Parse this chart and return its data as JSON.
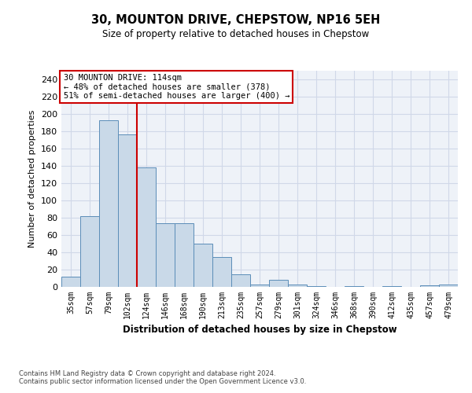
{
  "title1": "30, MOUNTON DRIVE, CHEPSTOW, NP16 5EH",
  "title2": "Size of property relative to detached houses in Chepstow",
  "xlabel": "Distribution of detached houses by size in Chepstow",
  "ylabel": "Number of detached properties",
  "categories": [
    "35sqm",
    "57sqm",
    "79sqm",
    "102sqm",
    "124sqm",
    "146sqm",
    "168sqm",
    "190sqm",
    "213sqm",
    "235sqm",
    "257sqm",
    "279sqm",
    "301sqm",
    "324sqm",
    "346sqm",
    "368sqm",
    "390sqm",
    "412sqm",
    "435sqm",
    "457sqm",
    "479sqm"
  ],
  "values": [
    12,
    82,
    193,
    176,
    138,
    74,
    74,
    50,
    35,
    15,
    3,
    8,
    3,
    1,
    0,
    1,
    0,
    1,
    0,
    2,
    3
  ],
  "bar_color": "#c9d9e8",
  "bar_edge_color": "#5b8db8",
  "vline_x_index": 3.5,
  "vline_color": "#cc0000",
  "annotation_line1": "30 MOUNTON DRIVE: 114sqm",
  "annotation_line2": "← 48% of detached houses are smaller (378)",
  "annotation_line3": "51% of semi-detached houses are larger (400) →",
  "annotation_box_color": "#cc0000",
  "ylim": [
    0,
    250
  ],
  "yticks": [
    0,
    20,
    40,
    60,
    80,
    100,
    120,
    140,
    160,
    180,
    200,
    220,
    240
  ],
  "grid_color": "#d0d8e8",
  "footer1": "Contains HM Land Registry data © Crown copyright and database right 2024.",
  "footer2": "Contains public sector information licensed under the Open Government Licence v3.0.",
  "bg_color": "#eef2f8"
}
